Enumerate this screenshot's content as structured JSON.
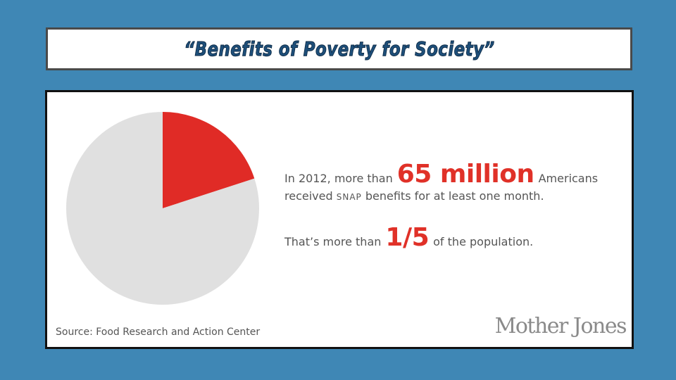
{
  "slide": {
    "title": "“Benefits of Poverty for Society”"
  },
  "infographic": {
    "line1_prefix": "In 2012, more than",
    "line1_highlight": "65 million",
    "line1_suffix": "Americans",
    "line2_prefix": "received",
    "line2_snap": "SNAP",
    "line2_suffix": "benefits for at least one month.",
    "line3_prefix": "That’s more than",
    "line3_highlight": "1/5",
    "line3_suffix": "of the population.",
    "source": "Source: Food Research and Action Center",
    "logo_text": "Mother Jones",
    "highlight_color": "#e03128"
  },
  "chart_data": {
    "type": "pie",
    "slices": [
      {
        "value": 0.2,
        "color": "#e02b26"
      },
      {
        "value": 0.8,
        "color": "#e0e0e0"
      }
    ],
    "start": "12 o'clock",
    "direction": "clockwise"
  }
}
